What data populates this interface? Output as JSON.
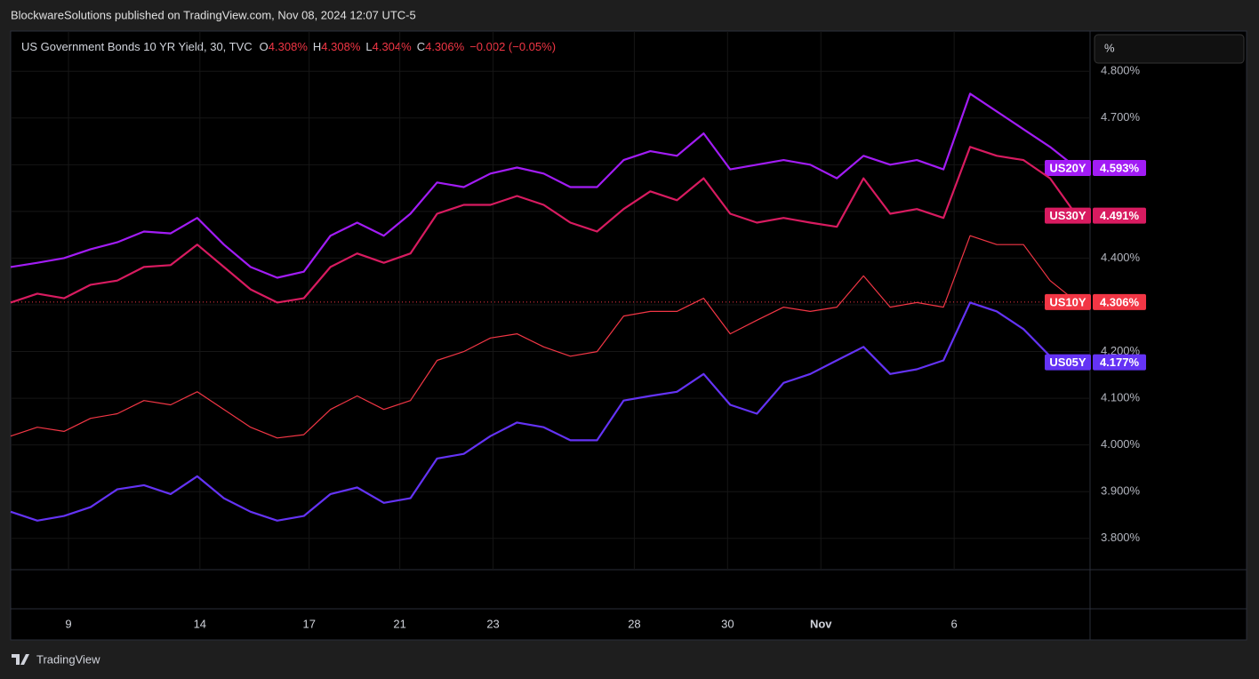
{
  "header": {
    "publisher": "BlockwareSolutions published on TradingView.com, Nov 08, 2024 12:07 UTC-5",
    "footer": "TradingView"
  },
  "chart_data": {
    "type": "line",
    "title": "US Government Bonds 10 YR Yield, 30, TVC",
    "ohlc": [
      {
        "key": "O",
        "label": "4.308%"
      },
      {
        "key": "H",
        "label": "4.308%"
      },
      {
        "key": "L",
        "label": "4.304%"
      },
      {
        "key": "C",
        "label": "4.306%"
      }
    ],
    "change": "−0.002 (−0.05%)",
    "unit": "%",
    "x": [
      0,
      1,
      2,
      3,
      4,
      5,
      6,
      7,
      8,
      9,
      10,
      11,
      12,
      13,
      14,
      15,
      16,
      17,
      18,
      19,
      20,
      21,
      22,
      23,
      24,
      25,
      26,
      27,
      28,
      29,
      30,
      31,
      32,
      33,
      34,
      35,
      36,
      37,
      38,
      39,
      40
    ],
    "xlim": [
      0,
      40.5
    ],
    "xticks": [
      {
        "value": 2.17,
        "label": "9"
      },
      {
        "value": 7.1,
        "label": "14"
      },
      {
        "value": 11.2,
        "label": "17"
      },
      {
        "value": 14.6,
        "label": "21"
      },
      {
        "value": 18.1,
        "label": "23"
      },
      {
        "value": 23.4,
        "label": "28"
      },
      {
        "value": 26.9,
        "label": "30"
      },
      {
        "value": 30.4,
        "label": "Nov"
      },
      {
        "value": 35.4,
        "label": "6"
      }
    ],
    "ylim": [
      3.733,
      4.886
    ],
    "yticks": [
      {
        "value": 3.8,
        "label": "3.800%"
      },
      {
        "value": 3.9,
        "label": "3.900%"
      },
      {
        "value": 4.0,
        "label": "4.000%"
      },
      {
        "value": 4.1,
        "label": "4.100%"
      },
      {
        "value": 4.2,
        "label": "4.200%"
      },
      {
        "value": 4.3,
        "label": ""
      },
      {
        "value": 4.4,
        "label": "4.400%"
      },
      {
        "value": 4.5,
        "label": ""
      },
      {
        "value": 4.6,
        "label": ""
      },
      {
        "value": 4.7,
        "label": "4.700%"
      },
      {
        "value": 4.8,
        "label": "4.800%"
      }
    ],
    "grid": true,
    "series": [
      {
        "name": "US20Y",
        "color": "#a21cf5",
        "last_label": "4.593%",
        "values": [
          4.381,
          4.39,
          4.4,
          4.419,
          4.434,
          4.457,
          4.453,
          4.486,
          4.429,
          4.381,
          4.358,
          4.371,
          4.448,
          4.476,
          4.448,
          4.495,
          4.562,
          4.552,
          4.581,
          4.594,
          4.581,
          4.552,
          4.552,
          4.61,
          4.629,
          4.619,
          4.667,
          4.59,
          4.6,
          4.61,
          4.6,
          4.571,
          4.619,
          4.6,
          4.61,
          4.59,
          4.752,
          4.714,
          4.676,
          4.638,
          4.593
        ]
      },
      {
        "name": "US30Y",
        "color": "#d81b60",
        "last_label": "4.491%",
        "values": [
          4.305,
          4.324,
          4.314,
          4.343,
          4.352,
          4.381,
          4.385,
          4.429,
          4.381,
          4.333,
          4.305,
          4.314,
          4.381,
          4.41,
          4.39,
          4.41,
          4.495,
          4.514,
          4.514,
          4.533,
          4.514,
          4.476,
          4.457,
          4.505,
          4.543,
          4.524,
          4.571,
          4.495,
          4.476,
          4.486,
          4.476,
          4.467,
          4.571,
          4.495,
          4.505,
          4.486,
          4.638,
          4.619,
          4.61,
          4.571,
          4.491
        ]
      },
      {
        "name": "US10Y",
        "color": "#f23645",
        "last_label": "4.306%",
        "values": [
          4.019,
          4.038,
          4.029,
          4.057,
          4.067,
          4.095,
          4.086,
          4.114,
          4.076,
          4.038,
          4.015,
          4.022,
          4.076,
          4.105,
          4.076,
          4.095,
          4.181,
          4.2,
          4.229,
          4.238,
          4.21,
          4.19,
          4.2,
          4.276,
          4.286,
          4.286,
          4.314,
          4.238,
          4.267,
          4.295,
          4.286,
          4.295,
          4.362,
          4.295,
          4.305,
          4.295,
          4.448,
          4.429,
          4.429,
          4.352,
          4.306
        ]
      },
      {
        "name": "US05Y",
        "color": "#6433f5",
        "last_label": "4.177%",
        "values": [
          3.857,
          3.838,
          3.848,
          3.867,
          3.905,
          3.914,
          3.895,
          3.933,
          3.886,
          3.857,
          3.838,
          3.848,
          3.895,
          3.909,
          3.876,
          3.886,
          3.971,
          3.981,
          4.019,
          4.048,
          4.038,
          4.01,
          4.01,
          4.095,
          4.105,
          4.114,
          4.152,
          4.086,
          4.067,
          4.133,
          4.152,
          4.181,
          4.21,
          4.152,
          4.162,
          4.181,
          4.305,
          4.286,
          4.248,
          4.19,
          4.177
        ]
      }
    ]
  }
}
